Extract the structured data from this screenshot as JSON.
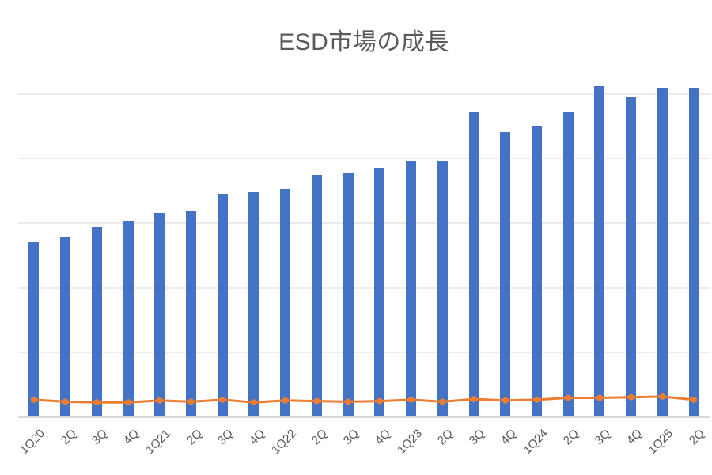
{
  "chart_data": {
    "type": "bar",
    "title": "ESD市場の成長",
    "categories": [
      "1Q20",
      "2Q",
      "3Q",
      "4Q",
      "1Q21",
      "2Q",
      "3Q",
      "4Q",
      "1Q22",
      "2Q",
      "3Q",
      "4Q",
      "1Q23",
      "2Q",
      "3Q",
      "4Q",
      "1Q24",
      "2Q",
      "3Q",
      "4Q",
      "1Q25",
      "2Q"
    ],
    "series": [
      {
        "name": "bar-series",
        "type": "bar",
        "color": "#4472C4",
        "values": [
          2.7,
          2.79,
          2.94,
          3.03,
          3.16,
          3.19,
          3.45,
          3.48,
          3.53,
          3.75,
          3.77,
          3.85,
          3.95,
          3.96,
          4.71,
          4.41,
          4.51,
          4.71,
          5.12,
          4.94,
          5.09,
          5.09
        ]
      },
      {
        "name": "line-series",
        "type": "line",
        "color": "#ED7D31",
        "marker": "circle",
        "values": [
          0.27,
          0.24,
          0.23,
          0.23,
          0.26,
          0.24,
          0.27,
          0.23,
          0.26,
          0.25,
          0.24,
          0.25,
          0.27,
          0.24,
          0.28,
          0.26,
          0.27,
          0.3,
          0.3,
          0.31,
          0.32,
          0.27
        ]
      }
    ],
    "ylim": [
      0,
      5.5
    ],
    "y_axis_labels_visible": false,
    "gridlines_visible": true,
    "gridline_interval": 1,
    "gridline_color": "#EBEBEB",
    "axis_line_color": "#D9D9D9",
    "text_color": "#595959",
    "legend_position": "none",
    "x_tick_rotation": -45,
    "background_color": "#FFFFFF"
  }
}
